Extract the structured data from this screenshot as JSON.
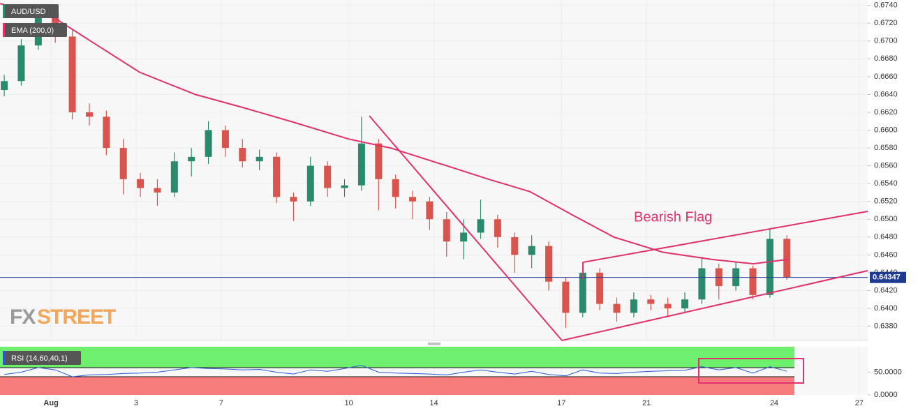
{
  "chart_data": {
    "type": "candlestick",
    "xlim": [
      -1.2,
      19.2
    ],
    "xticks": [
      {
        "value": 0,
        "label": "Aug"
      },
      {
        "value": 2,
        "label": "3"
      },
      {
        "value": 4,
        "label": "7"
      },
      {
        "value": 7,
        "label": "10"
      },
      {
        "value": 9,
        "label": "14"
      },
      {
        "value": 12,
        "label": "17"
      },
      {
        "value": 14,
        "label": "21"
      },
      {
        "value": 17,
        "label": "24"
      },
      {
        "value": 19,
        "label": "27"
      }
    ],
    "ylim": [
      0.6364,
      0.6746
    ],
    "yticks": [
      {
        "value": 0.674,
        "label": "0.6740"
      },
      {
        "value": 0.672,
        "label": "0.6720"
      },
      {
        "value": 0.67,
        "label": "0.6700"
      },
      {
        "value": 0.668,
        "label": "0.6680"
      },
      {
        "value": 0.666,
        "label": "0.6660"
      },
      {
        "value": 0.664,
        "label": "0.6640"
      },
      {
        "value": 0.662,
        "label": "0.6620"
      },
      {
        "value": 0.66,
        "label": "0.6600"
      },
      {
        "value": 0.658,
        "label": "0.6580"
      },
      {
        "value": 0.656,
        "label": "0.6560"
      },
      {
        "value": 0.654,
        "label": "0.6540"
      },
      {
        "value": 0.652,
        "label": "0.6520"
      },
      {
        "value": 0.65,
        "label": "0.6500"
      },
      {
        "value": 0.648,
        "label": "0.6480"
      },
      {
        "value": 0.646,
        "label": "0.6460"
      },
      {
        "value": 0.644,
        "label": "0.6440"
      },
      {
        "value": 0.642,
        "label": "0.6420"
      },
      {
        "value": 0.64,
        "label": "0.6400"
      },
      {
        "value": 0.638,
        "label": "0.6380"
      }
    ],
    "grid": true,
    "candles": {
      "name": "AUD/USD",
      "up_color": "#2b8a6e",
      "down_color": "#d8544c",
      "x": [
        -1.1,
        -0.7,
        -0.3,
        0.1,
        0.5,
        0.9,
        1.3,
        1.7,
        2.1,
        2.5,
        2.9,
        3.3,
        3.7,
        4.1,
        4.5,
        4.9,
        5.3,
        5.7,
        6.1,
        6.5,
        6.9,
        7.3,
        7.7,
        8.1,
        8.5,
        8.9,
        9.3,
        9.7,
        10.1,
        10.5,
        10.9,
        11.3,
        11.7,
        12.1,
        12.5,
        12.9,
        13.3,
        13.7,
        14.1,
        14.5,
        14.9,
        15.3,
        15.7,
        16.1,
        16.5,
        16.9,
        17.3
      ],
      "open": [
        0.6645,
        0.6655,
        0.6695,
        0.673,
        0.6705,
        0.662,
        0.6615,
        0.658,
        0.6545,
        0.6535,
        0.653,
        0.6565,
        0.657,
        0.66,
        0.658,
        0.6565,
        0.657,
        0.6525,
        0.652,
        0.656,
        0.6535,
        0.6538,
        0.6585,
        0.6545,
        0.6525,
        0.652,
        0.65,
        0.6475,
        0.6485,
        0.65,
        0.648,
        0.646,
        0.647,
        0.643,
        0.6395,
        0.644,
        0.6405,
        0.6395,
        0.641,
        0.6405,
        0.64,
        0.641,
        0.6445,
        0.6425,
        0.6445,
        0.6415,
        0.6478
      ],
      "high": [
        0.6662,
        0.6702,
        0.674,
        0.6738,
        0.6712,
        0.663,
        0.6622,
        0.659,
        0.6552,
        0.6545,
        0.6575,
        0.658,
        0.661,
        0.6605,
        0.659,
        0.6578,
        0.6575,
        0.653,
        0.657,
        0.6565,
        0.6545,
        0.6615,
        0.659,
        0.655,
        0.6532,
        0.6525,
        0.6508,
        0.65,
        0.6522,
        0.6505,
        0.6485,
        0.6482,
        0.6475,
        0.6435,
        0.6452,
        0.6445,
        0.6412,
        0.6418,
        0.6415,
        0.6412,
        0.6418,
        0.6458,
        0.645,
        0.6452,
        0.6448,
        0.649,
        0.6482
      ],
      "low": [
        0.6638,
        0.665,
        0.669,
        0.6698,
        0.6612,
        0.6605,
        0.6572,
        0.6528,
        0.6525,
        0.6515,
        0.6525,
        0.6548,
        0.6562,
        0.657,
        0.6558,
        0.6555,
        0.6518,
        0.6498,
        0.6515,
        0.6525,
        0.6525,
        0.6532,
        0.651,
        0.6512,
        0.65,
        0.6488,
        0.6458,
        0.6455,
        0.6478,
        0.6468,
        0.644,
        0.6445,
        0.642,
        0.6378,
        0.639,
        0.6398,
        0.6385,
        0.639,
        0.6398,
        0.639,
        0.6395,
        0.6405,
        0.641,
        0.642,
        0.641,
        0.6412,
        0.6432
      ],
      "close": [
        0.6655,
        0.6695,
        0.673,
        0.6705,
        0.662,
        0.6615,
        0.658,
        0.6545,
        0.6535,
        0.653,
        0.6565,
        0.657,
        0.66,
        0.658,
        0.6565,
        0.657,
        0.6525,
        0.652,
        0.656,
        0.6535,
        0.6538,
        0.6585,
        0.6545,
        0.6525,
        0.652,
        0.65,
        0.6475,
        0.6485,
        0.65,
        0.648,
        0.646,
        0.647,
        0.643,
        0.6395,
        0.644,
        0.6405,
        0.6395,
        0.641,
        0.6405,
        0.64,
        0.641,
        0.6445,
        0.6425,
        0.6445,
        0.6415,
        0.6478,
        0.6435
      ]
    },
    "ema": {
      "name": "EMA (200,0)",
      "color": "#e0306e",
      "x": [
        -1.2,
        0.11,
        0.93,
        2.08,
        3.39,
        4.54,
        5.69,
        7.0,
        7.98,
        9.3,
        10.28,
        11.26,
        12.25,
        13.23,
        14.38,
        15.52,
        16.51,
        17.33
      ],
      "values": [
        0.6742,
        0.6725,
        0.67,
        0.6665,
        0.664,
        0.6625,
        0.6609,
        0.659,
        0.658,
        0.656,
        0.6545,
        0.6531,
        0.6505,
        0.648,
        0.6463,
        0.6455,
        0.645,
        0.6455
      ]
    },
    "last_price": {
      "value": 0.64347,
      "label": "0.64347",
      "color": "#1f3a93"
    },
    "annotation": "Bearish Flag",
    "watermark": {
      "fx": "FX",
      "street": "STREET"
    },
    "rsi": {
      "name": "RSI (14,60,40,1)",
      "color": "#2a5bd7",
      "upper": 60,
      "lower": 40,
      "ylim": [
        0,
        106
      ],
      "yticks": [
        {
          "value": 50,
          "label": "50.0000"
        },
        {
          "value": 0,
          "label": "0.0000"
        }
      ],
      "values": [
        45,
        50,
        60,
        55,
        40,
        44,
        45,
        47,
        48,
        50,
        55,
        60,
        58,
        57,
        55,
        56,
        50,
        46,
        55,
        52,
        58,
        65,
        50,
        48,
        47,
        46,
        44,
        50,
        55,
        50,
        46,
        52,
        45,
        42,
        55,
        48,
        47,
        50,
        52,
        53,
        54,
        62,
        55,
        60,
        48,
        62,
        52
      ]
    }
  }
}
